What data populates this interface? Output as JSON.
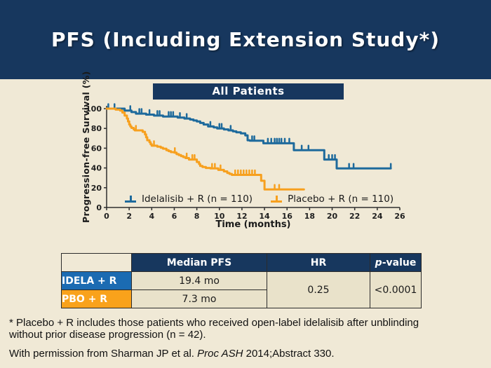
{
  "slide": {
    "title": "PFS (Including Extension Study*)"
  },
  "chart_data": {
    "type": "line",
    "subtype": "kaplan-meier-step",
    "title": "All Patients",
    "xlabel": "Time (months)",
    "ylabel": "Progression-free Survival (%)",
    "xlim": [
      0,
      26
    ],
    "ylim": [
      0,
      100
    ],
    "xticks": [
      0,
      2,
      4,
      6,
      8,
      10,
      12,
      14,
      16,
      18,
      20,
      22,
      24,
      26
    ],
    "yticks": [
      0,
      20,
      40,
      60,
      80,
      100
    ],
    "grid": false,
    "legend_position": "inside-bottom",
    "series": [
      {
        "label": "Idelalisib + R (n = 110)",
        "color": "#1E6A9C",
        "median_pfs_months": 19.4,
        "steps": [
          [
            0,
            100
          ],
          [
            1.6,
            100
          ],
          [
            1.6,
            98
          ],
          [
            2.2,
            98
          ],
          [
            2.2,
            96.5
          ],
          [
            2.6,
            96.5
          ],
          [
            2.6,
            95
          ],
          [
            3.5,
            95
          ],
          [
            3.5,
            94
          ],
          [
            4.2,
            94
          ],
          [
            4.2,
            93
          ],
          [
            5.0,
            93
          ],
          [
            5.0,
            92
          ],
          [
            6.3,
            92
          ],
          [
            6.3,
            91
          ],
          [
            6.9,
            91
          ],
          [
            6.9,
            90
          ],
          [
            7.4,
            90
          ],
          [
            7.4,
            89
          ],
          [
            7.7,
            89
          ],
          [
            7.7,
            88
          ],
          [
            8.0,
            88
          ],
          [
            8.0,
            87
          ],
          [
            8.3,
            87
          ],
          [
            8.3,
            85.5
          ],
          [
            8.6,
            85.5
          ],
          [
            8.6,
            84
          ],
          [
            9.0,
            84
          ],
          [
            9.0,
            82
          ],
          [
            9.5,
            82
          ],
          [
            9.5,
            81
          ],
          [
            9.8,
            81
          ],
          [
            9.8,
            80
          ],
          [
            10.4,
            80
          ],
          [
            10.4,
            79
          ],
          [
            10.8,
            79
          ],
          [
            10.8,
            78
          ],
          [
            11.2,
            78
          ],
          [
            11.2,
            77
          ],
          [
            11.5,
            77
          ],
          [
            11.5,
            76
          ],
          [
            11.9,
            76
          ],
          [
            11.9,
            75
          ],
          [
            12.3,
            75
          ],
          [
            12.3,
            73
          ],
          [
            12.5,
            73
          ],
          [
            12.5,
            68
          ],
          [
            12.7,
            68
          ],
          [
            12.7,
            67.5
          ],
          [
            13.9,
            67.5
          ],
          [
            13.9,
            65
          ],
          [
            16.6,
            65
          ],
          [
            16.6,
            58
          ],
          [
            19.3,
            58
          ],
          [
            19.3,
            48.5
          ],
          [
            20.4,
            48.5
          ],
          [
            20.4,
            39.5
          ],
          [
            25.2,
            39.5
          ]
        ],
        "censor_ticks": [
          [
            0.15,
            100
          ],
          [
            0.7,
            100
          ],
          [
            2.1,
            98
          ],
          [
            2.9,
            95
          ],
          [
            3.1,
            95
          ],
          [
            3.8,
            94
          ],
          [
            4.5,
            93
          ],
          [
            4.7,
            93
          ],
          [
            5.5,
            92
          ],
          [
            5.7,
            92
          ],
          [
            5.9,
            92
          ],
          [
            6.5,
            91
          ],
          [
            7.1,
            90
          ],
          [
            9.2,
            82
          ],
          [
            10.0,
            80
          ],
          [
            10.2,
            80
          ],
          [
            11.0,
            78
          ],
          [
            12.9,
            67.5
          ],
          [
            13.1,
            67.5
          ],
          [
            14.3,
            65
          ],
          [
            14.6,
            65
          ],
          [
            14.9,
            65
          ],
          [
            15.1,
            65
          ],
          [
            15.3,
            65
          ],
          [
            15.5,
            65
          ],
          [
            15.8,
            65
          ],
          [
            16.2,
            65
          ],
          [
            17.3,
            58
          ],
          [
            17.9,
            58
          ],
          [
            19.7,
            48.5
          ],
          [
            20.0,
            48.5
          ],
          [
            20.25,
            48.5
          ],
          [
            21.5,
            39.5
          ],
          [
            21.9,
            39.5
          ],
          [
            25.2,
            39.5
          ]
        ]
      },
      {
        "label": "Placebo + R (n = 110)",
        "color": "#F7A01E",
        "median_pfs_months": 7.3,
        "steps": [
          [
            0,
            100
          ],
          [
            0.8,
            100
          ],
          [
            0.8,
            99
          ],
          [
            1.2,
            99
          ],
          [
            1.2,
            98
          ],
          [
            1.4,
            98
          ],
          [
            1.4,
            96
          ],
          [
            1.6,
            96
          ],
          [
            1.6,
            93
          ],
          [
            1.8,
            93
          ],
          [
            1.8,
            90
          ],
          [
            1.9,
            90
          ],
          [
            1.9,
            87
          ],
          [
            2.0,
            87
          ],
          [
            2.0,
            84
          ],
          [
            2.1,
            84
          ],
          [
            2.1,
            82
          ],
          [
            2.2,
            82
          ],
          [
            2.2,
            80.5
          ],
          [
            2.4,
            80.5
          ],
          [
            2.4,
            79
          ],
          [
            2.5,
            79
          ],
          [
            2.5,
            78
          ],
          [
            3.2,
            78
          ],
          [
            3.2,
            76.5
          ],
          [
            3.4,
            76.5
          ],
          [
            3.4,
            74
          ],
          [
            3.5,
            74
          ],
          [
            3.5,
            71
          ],
          [
            3.6,
            71
          ],
          [
            3.6,
            68
          ],
          [
            3.8,
            68
          ],
          [
            3.8,
            66
          ],
          [
            3.9,
            66
          ],
          [
            3.9,
            64
          ],
          [
            4.0,
            64
          ],
          [
            4.0,
            62.5
          ],
          [
            4.5,
            62.5
          ],
          [
            4.5,
            61.5
          ],
          [
            4.8,
            61.5
          ],
          [
            4.8,
            60.5
          ],
          [
            5.0,
            60.5
          ],
          [
            5.0,
            59.5
          ],
          [
            5.3,
            59.5
          ],
          [
            5.3,
            58
          ],
          [
            5.5,
            58
          ],
          [
            5.5,
            57
          ],
          [
            5.7,
            57
          ],
          [
            5.7,
            56
          ],
          [
            6.0,
            56
          ],
          [
            6.0,
            55.5
          ],
          [
            6.2,
            55.5
          ],
          [
            6.2,
            54
          ],
          [
            6.4,
            54
          ],
          [
            6.4,
            53
          ],
          [
            6.6,
            53
          ],
          [
            6.6,
            52
          ],
          [
            6.8,
            52
          ],
          [
            6.8,
            51
          ],
          [
            7.0,
            51
          ],
          [
            7.0,
            50
          ],
          [
            7.3,
            50
          ],
          [
            7.3,
            48.5
          ],
          [
            8.0,
            48.5
          ],
          [
            8.0,
            46
          ],
          [
            8.2,
            46
          ],
          [
            8.2,
            44
          ],
          [
            8.3,
            44
          ],
          [
            8.3,
            42
          ],
          [
            8.5,
            42
          ],
          [
            8.5,
            41
          ],
          [
            8.8,
            41
          ],
          [
            8.8,
            40
          ],
          [
            9.2,
            40
          ],
          [
            9.2,
            39.5
          ],
          [
            9.9,
            39.5
          ],
          [
            9.9,
            38
          ],
          [
            10.4,
            38
          ],
          [
            10.4,
            36.5
          ],
          [
            10.7,
            36.5
          ],
          [
            10.7,
            35
          ],
          [
            10.9,
            35
          ],
          [
            10.9,
            34
          ],
          [
            11.1,
            34
          ],
          [
            11.1,
            33
          ],
          [
            13.7,
            33
          ],
          [
            13.7,
            27
          ],
          [
            14.0,
            27
          ],
          [
            14.0,
            18.3
          ],
          [
            17.5,
            18.3
          ]
        ],
        "censor_ticks": [
          [
            2.6,
            78
          ],
          [
            4.2,
            62.5
          ],
          [
            6.05,
            55.5
          ],
          [
            7.1,
            50
          ],
          [
            7.6,
            48.5
          ],
          [
            7.8,
            48.5
          ],
          [
            9.35,
            39.5
          ],
          [
            9.6,
            39.5
          ],
          [
            10.1,
            38
          ],
          [
            11.4,
            33
          ],
          [
            11.65,
            33
          ],
          [
            11.9,
            33
          ],
          [
            12.15,
            33
          ],
          [
            12.4,
            33
          ],
          [
            12.65,
            33
          ],
          [
            12.9,
            33
          ],
          [
            13.15,
            33
          ],
          [
            14.9,
            18.3
          ],
          [
            15.3,
            18.3
          ]
        ]
      }
    ]
  },
  "table": {
    "headers": {
      "median": "Median PFS",
      "hr": "HR",
      "p_italic": "p",
      "p_suffix": "-value"
    },
    "rows": [
      {
        "label": "IDELA + R",
        "median": "19.4 mo"
      },
      {
        "label": "PBO + R",
        "median": "7.3 mo"
      }
    ],
    "hr_value": "0.25",
    "p_value": "<0.0001"
  },
  "footnotes": {
    "star_line1": "* Placebo + R includes those patients who received open-label idelalisib after unblinding",
    "star_line2": "without prior disease progression (n = 42).",
    "permission_prefix": "With permission from Sharman JP et al. ",
    "permission_italic": "Proc ASH",
    "permission_suffix": " 2014;Abstract 330."
  },
  "colors": {
    "navy": "#17375E",
    "cream_background": "#F0E9D6",
    "table_cell_tan": "#E9E2CA",
    "idela_blue": "#1B6BB2",
    "pbo_orange": "#F9A21B",
    "curve_blue": "#1E6A9C",
    "curve_orange": "#F7A01E"
  }
}
